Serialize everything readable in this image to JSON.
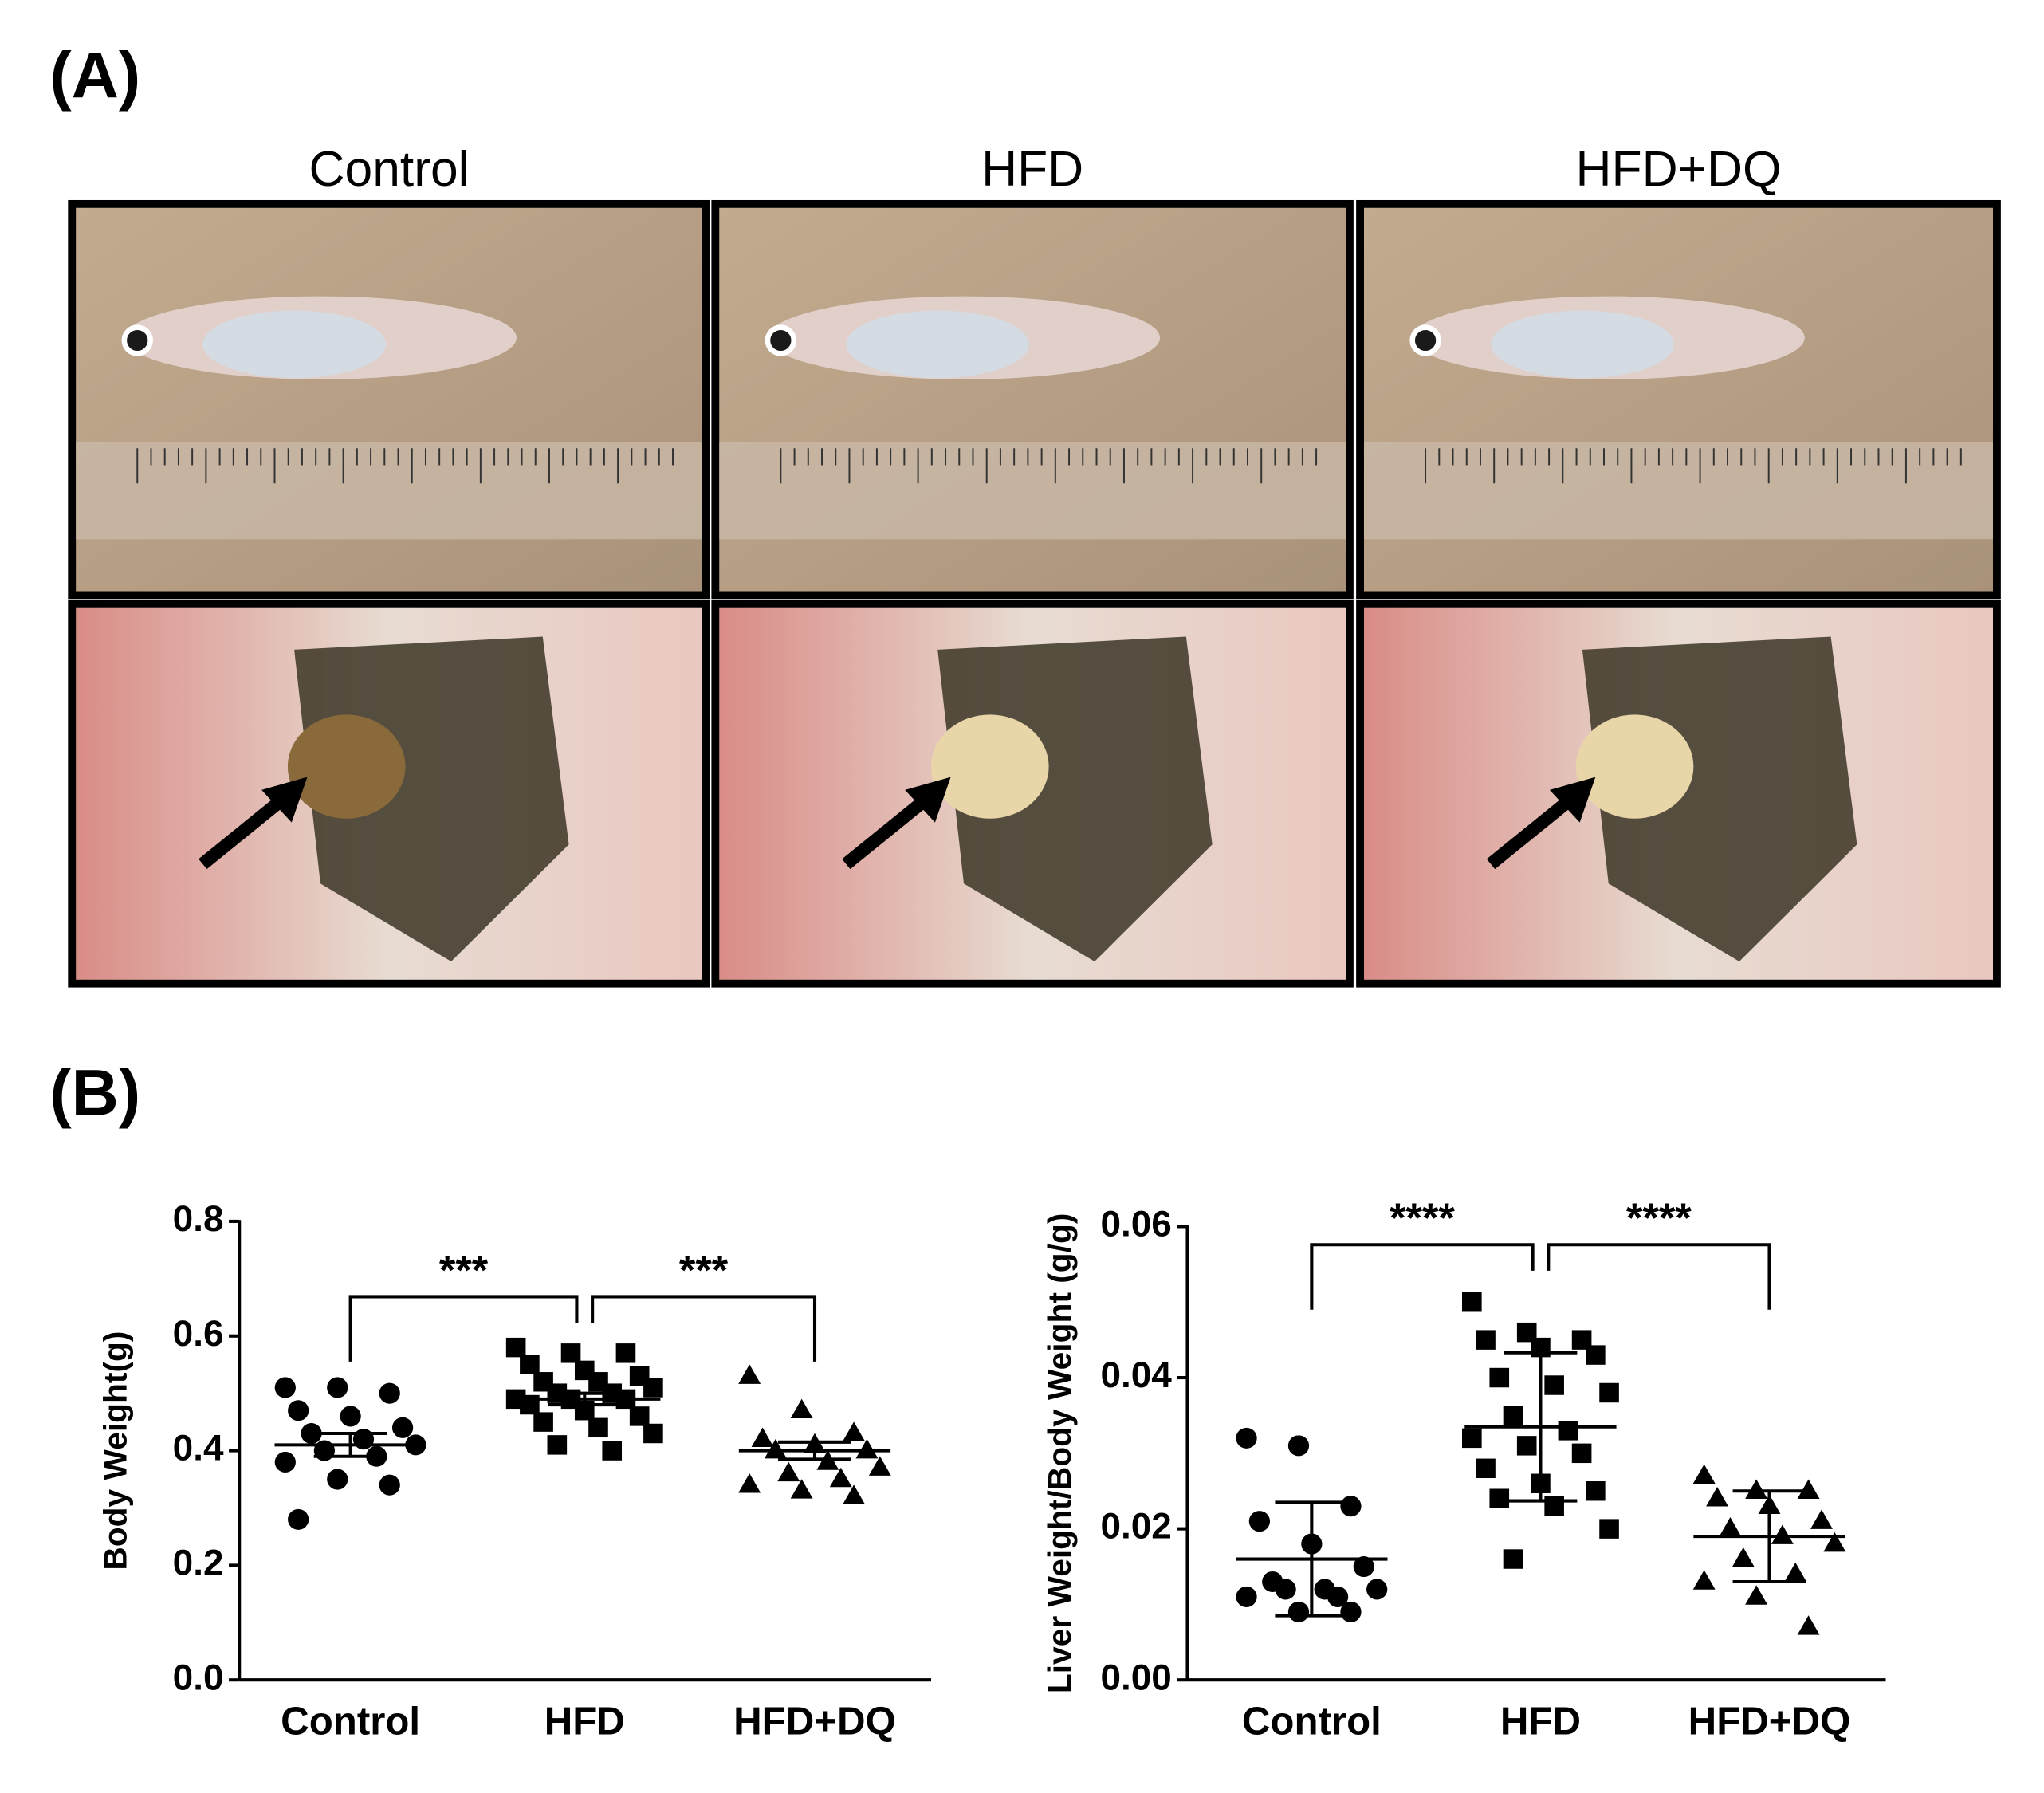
{
  "panel_labels": [
    "(A)",
    "(B)"
  ],
  "photo_columns": [
    "Control",
    "HFD",
    "HFD+DQ"
  ],
  "chart_data": [
    {
      "type": "scatter",
      "ylabel": "Body Weight(g)",
      "categories": [
        "Control",
        "HFD",
        "HFD+DQ"
      ],
      "markers": [
        "circle",
        "square",
        "triangle"
      ],
      "color": "#000000",
      "series": [
        {
          "name": "Control",
          "values": [
            0.51,
            0.51,
            0.5,
            0.47,
            0.46,
            0.44,
            0.43,
            0.42,
            0.41,
            0.4,
            0.39,
            0.38,
            0.35,
            0.34,
            0.28
          ],
          "mean": 0.41,
          "error": 0.02
        },
        {
          "name": "HFD",
          "values": [
            0.58,
            0.57,
            0.57,
            0.55,
            0.54,
            0.53,
            0.52,
            0.52,
            0.51,
            0.5,
            0.5,
            0.49,
            0.49,
            0.49,
            0.48,
            0.47,
            0.46,
            0.45,
            0.44,
            0.43,
            0.41,
            0.4
          ],
          "mean": 0.49,
          "error": 0.01
        },
        {
          "name": "HFD+DQ",
          "values": [
            0.53,
            0.47,
            0.43,
            0.42,
            0.41,
            0.4,
            0.4,
            0.38,
            0.37,
            0.36,
            0.35,
            0.34,
            0.33,
            0.32
          ],
          "mean": 0.4,
          "error": 0.015
        }
      ],
      "significance": [
        {
          "between": [
            "Control",
            "HFD"
          ],
          "label": "***"
        },
        {
          "between": [
            "HFD",
            "HFD+DQ"
          ],
          "label": "***"
        }
      ],
      "ylim": [
        0,
        0.8
      ],
      "yticks": [
        {
          "value": 0,
          "label": "0.0"
        },
        0.2,
        0.4,
        0.6,
        0.8
      ]
    },
    {
      "type": "scatter",
      "ylabel": "Liver Weight/Body Weight (g/g)",
      "categories": [
        "Control",
        "HFD",
        "HFD+DQ"
      ],
      "markers": [
        "circle",
        "square",
        "triangle"
      ],
      "color": "#000000",
      "series": [
        {
          "name": "Control",
          "values": [
            0.032,
            0.031,
            0.023,
            0.021,
            0.018,
            0.015,
            0.013,
            0.012,
            0.012,
            0.012,
            0.011,
            0.011,
            0.009,
            0.009
          ],
          "mean": 0.016,
          "error": 0.0075
        },
        {
          "name": "HFD",
          "values": [
            0.05,
            0.046,
            0.045,
            0.045,
            0.044,
            0.043,
            0.04,
            0.039,
            0.038,
            0.035,
            0.033,
            0.032,
            0.031,
            0.03,
            0.028,
            0.026,
            0.025,
            0.024,
            0.023,
            0.02,
            0.016
          ],
          "mean": 0.0335,
          "error": 0.0098
        },
        {
          "name": "HFD+DQ",
          "values": [
            0.027,
            0.025,
            0.025,
            0.024,
            0.023,
            0.021,
            0.02,
            0.019,
            0.018,
            0.016,
            0.014,
            0.013,
            0.011,
            0.007
          ],
          "mean": 0.019,
          "error": 0.006
        }
      ],
      "significance": [
        {
          "between": [
            "Control",
            "HFD"
          ],
          "label": "****"
        },
        {
          "between": [
            "HFD",
            "HFD+DQ"
          ],
          "label": "****"
        }
      ],
      "ylim": [
        0,
        0.06
      ],
      "yticks": [
        {
          "value": 0,
          "label": "0.00"
        },
        0.02,
        0.04,
        0.06
      ]
    }
  ]
}
